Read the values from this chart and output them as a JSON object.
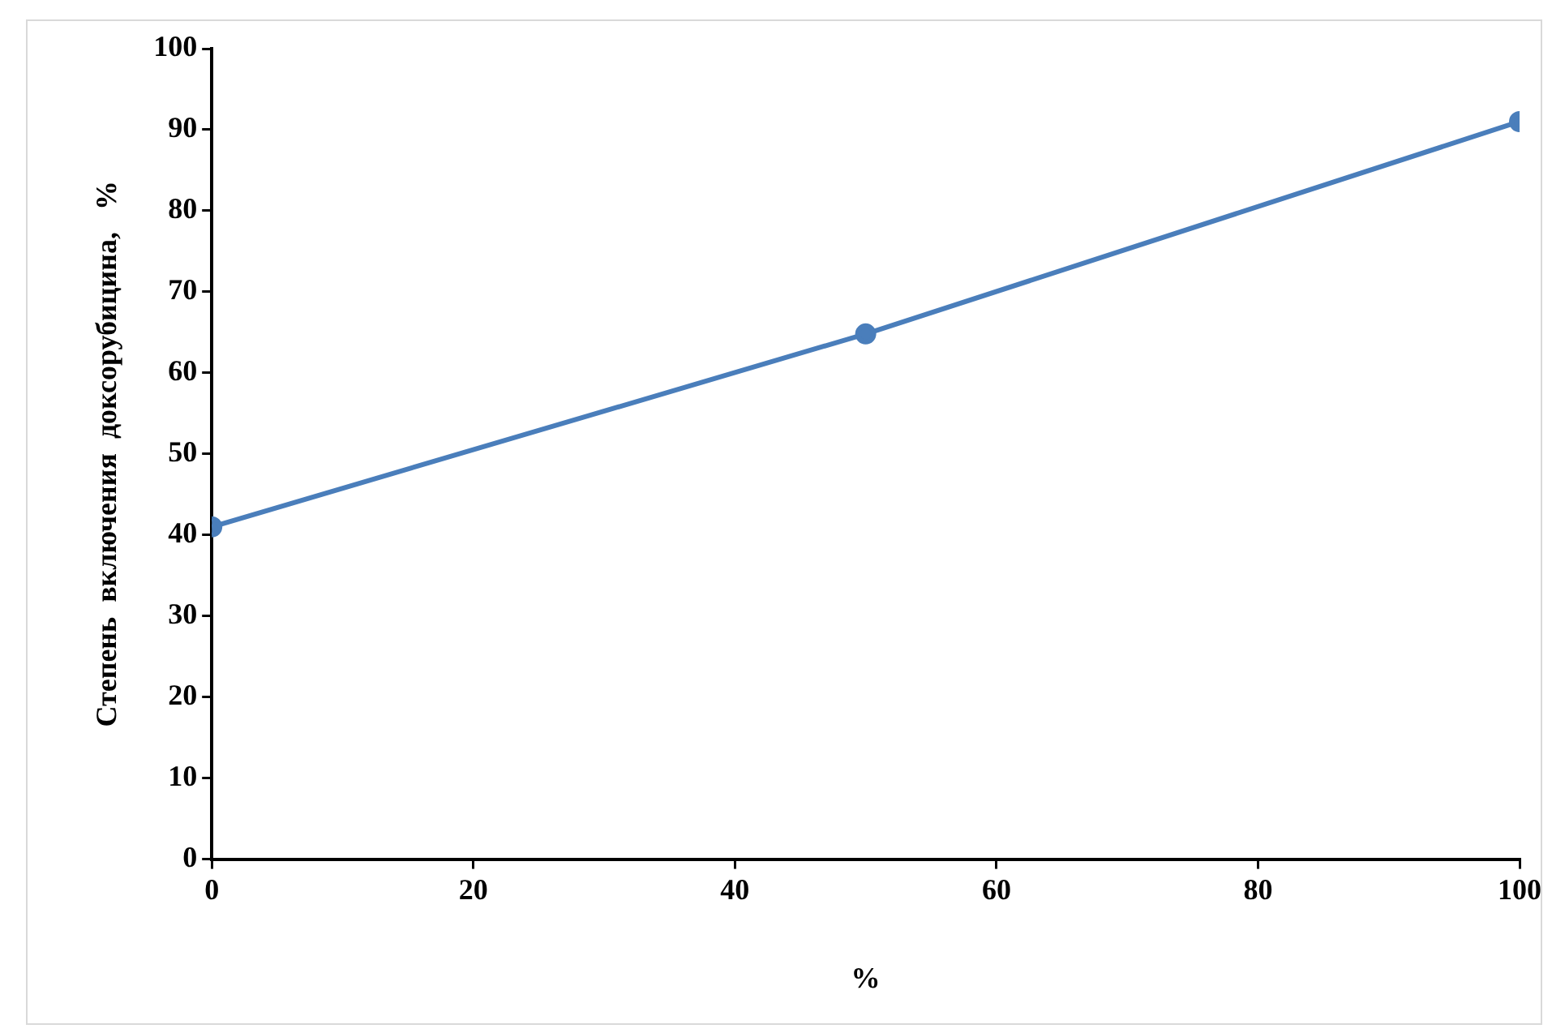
{
  "chart_data": {
    "type": "line",
    "xlabel": "%",
    "ylabel": "Степень  включения  доксорубицина,   %",
    "x": [
      0,
      50,
      100
    ],
    "series": [
      {
        "color": "#4a7ebb",
        "values": [
          41,
          64.8,
          91
        ]
      }
    ],
    "xlim": [
      0,
      100
    ],
    "xticks": [
      0,
      20,
      40,
      60,
      80,
      100
    ],
    "ylim": [
      0,
      100
    ],
    "yticks": [
      0,
      10,
      20,
      30,
      40,
      50,
      60,
      70,
      80,
      90,
      100
    ],
    "grid": false,
    "legend": false,
    "marker": "circle",
    "line_style": "solid"
  }
}
